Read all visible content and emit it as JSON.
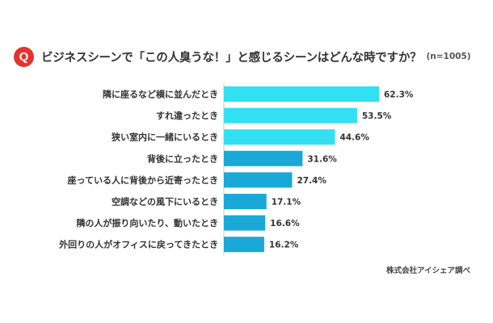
{
  "header": {
    "badge": "Q",
    "title": "ビジネスシーンで「この人臭うな！」と感じるシーンはどんな時ですか？",
    "sample": "(n=1005)"
  },
  "source": "株式会社アイシェア調べ",
  "colors": {
    "badge": "#e5322d",
    "top_bars": "#33e0f2",
    "other_bars": "#1aa9d6"
  },
  "chart_data": {
    "type": "bar",
    "orientation": "horizontal",
    "categories": [
      "隣に座るなど横に並んだとき",
      "すれ違ったとき",
      "狭い室内に一緒にいるとき",
      "背後に立ったとき",
      "座っている人に背後から近寄ったとき",
      "空調などの風下にいるとき",
      "隣の人が振り向いたり、動いたとき",
      "外回りの人がオフィスに戻ってきたとき"
    ],
    "values": [
      62.3,
      53.5,
      44.6,
      31.6,
      27.4,
      17.1,
      16.6,
      16.2
    ],
    "labels": [
      "62.3%",
      "53.5%",
      "44.6%",
      "31.6%",
      "27.4%",
      "17.1%",
      "16.6%",
      "16.2%"
    ],
    "unit": "%",
    "highlight_top": 3,
    "xlim": [
      0,
      62.3
    ],
    "grid": false,
    "legend": "none"
  }
}
